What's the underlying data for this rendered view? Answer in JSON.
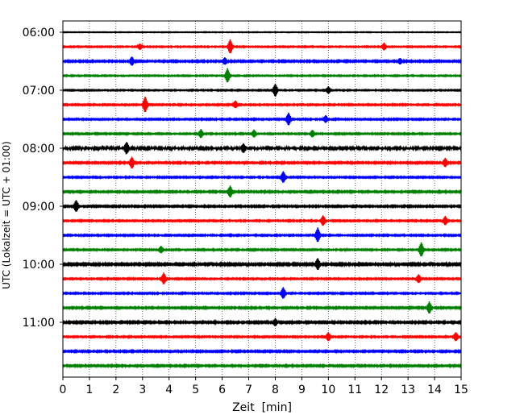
{
  "chart_data": {
    "type": "line",
    "xlabel": "Zeit  [min]",
    "ylabel": "UTC (Lokalzeit = UTC + 01:00)",
    "xlim": [
      0,
      15
    ],
    "x_ticks": [
      "0",
      "1",
      "2",
      "3",
      "4",
      "5",
      "6",
      "7",
      "8",
      "9",
      "10",
      "11",
      "12",
      "13",
      "14",
      "15"
    ],
    "y_ticks": [
      "06:00",
      "07:00",
      "08:00",
      "09:00",
      "10:00",
      "11:00"
    ],
    "grid": "vertical dotted at each minute",
    "trace_colors": [
      "#000000",
      "#ff0000",
      "#0000ff",
      "#008000"
    ],
    "traces": [
      {
        "start": "06:00",
        "amplitude": 0.15,
        "events": []
      },
      {
        "start": "06:15",
        "amplitude": 0.25,
        "events": [
          [
            6.3,
            1.0
          ],
          [
            2.9,
            0.4
          ],
          [
            12.1,
            0.5
          ]
        ]
      },
      {
        "start": "06:30",
        "amplitude": 0.35,
        "events": [
          [
            2.6,
            0.6
          ],
          [
            6.1,
            0.5
          ],
          [
            12.7,
            0.4
          ]
        ]
      },
      {
        "start": "06:45",
        "amplitude": 0.25,
        "events": [
          [
            6.2,
            1.0
          ]
        ]
      },
      {
        "start": "07:00",
        "amplitude": 0.25,
        "events": [
          [
            8.0,
            0.9
          ],
          [
            10.0,
            0.5
          ]
        ]
      },
      {
        "start": "07:15",
        "amplitude": 0.3,
        "events": [
          [
            3.1,
            1.1
          ],
          [
            6.5,
            0.5
          ]
        ]
      },
      {
        "start": "07:30",
        "amplitude": 0.3,
        "events": [
          [
            8.5,
            0.9
          ],
          [
            9.9,
            0.5
          ]
        ]
      },
      {
        "start": "07:45",
        "amplitude": 0.3,
        "events": [
          [
            5.2,
            0.6
          ],
          [
            7.2,
            0.5
          ],
          [
            9.4,
            0.5
          ]
        ]
      },
      {
        "start": "08:00",
        "amplitude": 0.55,
        "events": [
          [
            2.4,
            0.8
          ],
          [
            6.8,
            0.6
          ]
        ]
      },
      {
        "start": "08:15",
        "amplitude": 0.35,
        "events": [
          [
            2.6,
            0.8
          ],
          [
            14.4,
            0.6
          ]
        ]
      },
      {
        "start": "08:30",
        "amplitude": 0.3,
        "events": [
          [
            8.3,
            0.8
          ]
        ]
      },
      {
        "start": "08:45",
        "amplitude": 0.35,
        "events": [
          [
            6.3,
            0.8
          ]
        ]
      },
      {
        "start": "09:00",
        "amplitude": 0.35,
        "events": [
          [
            0.5,
            0.8
          ]
        ]
      },
      {
        "start": "09:15",
        "amplitude": 0.3,
        "events": [
          [
            9.8,
            0.7
          ],
          [
            14.4,
            0.6
          ]
        ]
      },
      {
        "start": "09:30",
        "amplitude": 0.3,
        "events": [
          [
            9.6,
            1.0
          ]
        ]
      },
      {
        "start": "09:45",
        "amplitude": 0.3,
        "events": [
          [
            13.5,
            1.0
          ],
          [
            3.7,
            0.5
          ]
        ]
      },
      {
        "start": "10:00",
        "amplitude": 0.45,
        "events": [
          [
            9.6,
            0.8
          ]
        ]
      },
      {
        "start": "10:15",
        "amplitude": 0.3,
        "events": [
          [
            3.8,
            0.8
          ],
          [
            13.4,
            0.6
          ]
        ]
      },
      {
        "start": "10:30",
        "amplitude": 0.3,
        "events": [
          [
            8.3,
            0.8
          ]
        ]
      },
      {
        "start": "10:45",
        "amplitude": 0.35,
        "events": [
          [
            13.8,
            0.8
          ]
        ]
      },
      {
        "start": "11:00",
        "amplitude": 0.4,
        "events": [
          [
            8.0,
            0.5
          ]
        ]
      },
      {
        "start": "11:15",
        "amplitude": 0.3,
        "events": [
          [
            10.0,
            0.6
          ],
          [
            14.8,
            0.6
          ]
        ]
      },
      {
        "start": "11:30",
        "amplitude": 0.35,
        "events": []
      },
      {
        "start": "11:45",
        "amplitude": 0.35,
        "events": []
      }
    ]
  }
}
